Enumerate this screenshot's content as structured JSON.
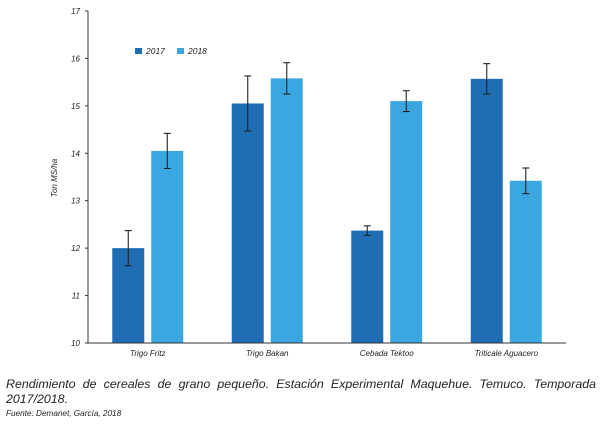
{
  "chart_data": {
    "type": "bar",
    "title": "",
    "xlabel": "",
    "ylabel": "Ton MS/ha",
    "ylim": [
      10,
      17
    ],
    "yticks": [
      "10",
      "11",
      "12",
      "13",
      "14",
      "15",
      "16",
      "17"
    ],
    "categories": [
      "Trigo Fritz",
      "Trigo Bakan",
      "Cebada Tektoo",
      "Triticale Aguacero"
    ],
    "series": [
      {
        "name": "2017",
        "color": "#1f6eb4",
        "values": [
          12.0,
          15.05,
          12.37,
          15.57
        ],
        "error": [
          0.37,
          0.58,
          0.1,
          0.32
        ]
      },
      {
        "name": "2018",
        "color": "#3aa7e0",
        "values": [
          14.05,
          15.58,
          15.1,
          13.42
        ],
        "error": [
          0.37,
          0.33,
          0.22,
          0.27
        ]
      }
    ],
    "legend_position": "top-left",
    "grid": false
  },
  "caption": "Rendimiento de cereales de grano pequeño. Estación Experimental Maquehue. Temuco. Temporada 2017/2018.",
  "source": "Fuente: Demanet, García, 2018"
}
